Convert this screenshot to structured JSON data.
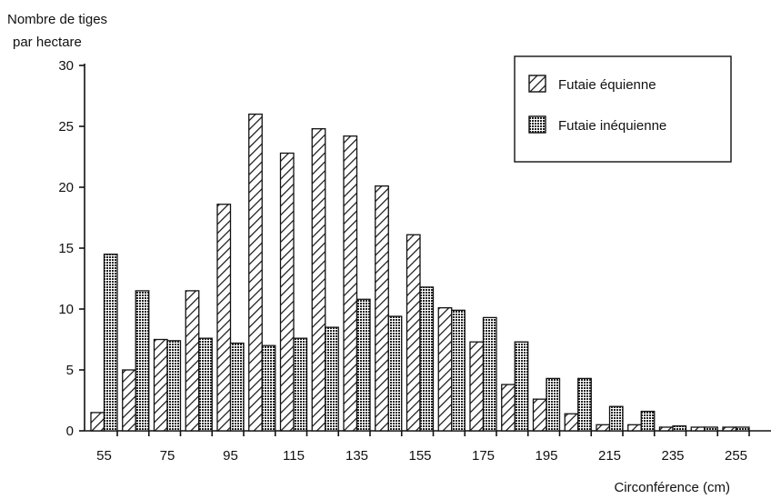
{
  "chart_data": {
    "type": "bar",
    "ylabel_line1": "Nombre de tiges",
    "ylabel_line2": "par hectare",
    "xlabel": "Circonférence  (cm)",
    "ylim": [
      0,
      30
    ],
    "yticks": [
      0,
      5,
      10,
      15,
      20,
      25,
      30
    ],
    "categories": [
      55,
      65,
      75,
      85,
      95,
      105,
      115,
      125,
      135,
      145,
      155,
      165,
      175,
      185,
      195,
      205,
      215,
      225,
      235,
      245,
      255,
      265
    ],
    "xtick_labels": [
      "55",
      "75",
      "95",
      "115",
      "135",
      "155",
      "175",
      "195",
      "215",
      "235",
      "255"
    ],
    "series": [
      {
        "name": "Futaie équienne",
        "pattern": "diagonal-hatch",
        "values": [
          1.5,
          5.0,
          7.5,
          11.5,
          18.6,
          26.0,
          22.8,
          24.8,
          24.2,
          20.1,
          16.1,
          10.1,
          7.3,
          3.8,
          2.6,
          1.4,
          0.5,
          0.5,
          0.3,
          0.3,
          0.3,
          0.0
        ]
      },
      {
        "name": "Futaie inéquienne",
        "pattern": "dotted",
        "values": [
          14.5,
          11.5,
          7.4,
          7.6,
          7.2,
          7.0,
          7.6,
          8.5,
          10.8,
          9.4,
          11.8,
          9.9,
          9.3,
          7.3,
          4.3,
          4.3,
          2.0,
          1.6,
          0.4,
          0.3,
          0.3,
          0.0
        ]
      }
    ],
    "legend_position": "top-right",
    "grid": false
  }
}
